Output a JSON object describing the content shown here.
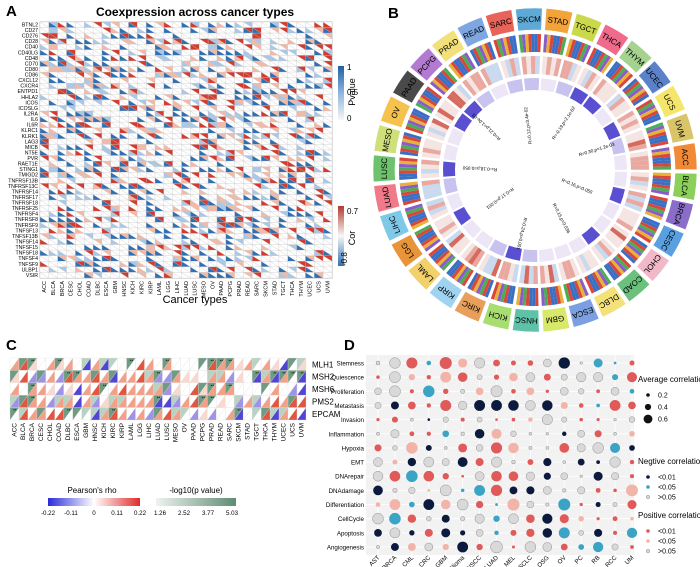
{
  "panel_labels": {
    "a": "A",
    "b": "B",
    "c": "C",
    "d": "D"
  },
  "colors": {
    "pos": "#d23b2f",
    "neg": "#2f6fb3",
    "pos_light": "#f2b9a7",
    "neg_light": "#a9c7e6",
    "grid": "#c8c8c8",
    "teal": "#2a8f9e"
  },
  "chart_data": [
    {
      "panel": "A",
      "type": "heatmap",
      "title": "Coexpression across cancer types",
      "xlabel": "Cancer types",
      "ylabel": "",
      "genes": [
        "BTNL2",
        "CD27",
        "CD276",
        "CD28",
        "CD40",
        "CD40LG",
        "CD48",
        "CD70",
        "CD80",
        "CD86",
        "CXCL12",
        "CXCR4",
        "ENTPD1",
        "HHLA2",
        "ICOS",
        "ICOSLG",
        "IL2RA",
        "IL6",
        "IL6R",
        "KLRC1",
        "KLRK1",
        "LAG3",
        "MICB",
        "NT5E",
        "PVR",
        "RAET1E",
        "STING1",
        "TMIGD2",
        "TNFRSF13B",
        "TNFRSF13C",
        "TNFRSF14",
        "TNFRSF17",
        "TNFRSF18",
        "TNFRSF25",
        "TNFRSF4",
        "TNFRSF8",
        "TNFRSF9",
        "TNFSF13",
        "TNFSF13B",
        "TNFSF14",
        "TNFSF15",
        "TNFSF18",
        "TNFSF4",
        "TNFSF9",
        "ULBP1",
        "VSIR"
      ],
      "cancers": [
        "ACC",
        "BLCA",
        "BRCA",
        "CESC",
        "CHOL",
        "COAD",
        "DLBC",
        "ESCA",
        "GBM",
        "HNSC",
        "KICH",
        "KIRC",
        "KIRP",
        "LAML",
        "LGG",
        "LIHC",
        "LUAD",
        "LUSC",
        "MESO",
        "OV",
        "PAAD",
        "PCPG",
        "PRAD",
        "READ",
        "SARC",
        "SKCM",
        "STAD",
        "TGCT",
        "THCA",
        "THYM",
        "UCEC",
        "UCS",
        "UVM"
      ],
      "legend_pvalue": {
        "title": "Pvalue",
        "ticks": [
          "1",
          "0.5",
          "0"
        ]
      },
      "legend_cor": {
        "title": "Cor",
        "ticks": [
          "0.7",
          "-0.8"
        ]
      }
    },
    {
      "panel": "B",
      "type": "circos",
      "sectors": [
        "READ",
        "SARC",
        "SKCM",
        "STAD",
        "TGCT",
        "THCA",
        "THYM",
        "UCEC",
        "UCS",
        "UVM",
        "ACC",
        "BLCA",
        "BRCA",
        "CESC",
        "CHOL",
        "COAD",
        "DLBC",
        "ESCA",
        "GBM",
        "HNSC",
        "KICH",
        "KIRC",
        "KIRP",
        "LAML",
        "LGG",
        "LIHC",
        "LUAD",
        "LUSC",
        "MESO",
        "OV",
        "PAAD",
        "PCPG",
        "PRAD"
      ],
      "sector_colors": [
        "#7ea6e0",
        "#e8645a",
        "#5fa9d6",
        "#f2a33a",
        "#c9d94b",
        "#f06a8c",
        "#a5d38f",
        "#5b82c9",
        "#f5e66b",
        "#d9c46a",
        "#f08a36",
        "#8ccf5a",
        "#8a6cc9",
        "#5aa0e0",
        "#f0b8c8",
        "#6cc07e",
        "#f3e17a",
        "#7b9fe0",
        "#d7e86a",
        "#5fc2a8",
        "#a8dd72",
        "#e89f5b",
        "#9fd3f0",
        "#f2d06b",
        "#e8943a",
        "#7fc9e8",
        "#f07a8a",
        "#6ec26e",
        "#cfe07a",
        "#f4c24d",
        "#4a4a4a",
        "#b27ad1",
        "#f2e07a"
      ],
      "annotations": [
        "R=0.16,p=0.050",
        "R=0.15,p=0.036",
        "R=0.24,p=0.001",
        "R=0.17,p=0.001",
        "R=-0.18,p=0.050",
        "R=0.21,p=1.0e-03",
        "R=0.12,p=3.4e-02",
        "R=-0.19,p=2.1e-02",
        "R=0.30,p=1.2e-03"
      ]
    },
    {
      "panel": "C",
      "type": "heatmap",
      "genes": [
        "MLH1",
        "MSH2",
        "MSH6",
        "PMS2",
        "EPCAM"
      ],
      "cancers": [
        "ACC",
        "BLCA",
        "BRCA",
        "CESC",
        "CHOL",
        "COAD",
        "DLBC",
        "ESCA",
        "GBM",
        "HNSC",
        "KICH",
        "KIRC",
        "KIRP",
        "LAML",
        "LGG",
        "LIHC",
        "LUAD",
        "LUSC",
        "MESO",
        "OV",
        "PAAD",
        "PCPG",
        "PRAD",
        "READ",
        "SARC",
        "SKCM",
        "STAD",
        "TGCT",
        "THCA",
        "THYM",
        "UCEC",
        "UCS",
        "UVM"
      ],
      "legend_rho": {
        "title": "Pearson's rho",
        "ticks": [
          "-0.22",
          "-0.11",
          "0",
          "0.11",
          "0.22"
        ]
      },
      "legend_p": {
        "title": "-log10(p value)",
        "ticks": [
          "1.26",
          "2.52",
          "3.77",
          "5.03"
        ]
      }
    },
    {
      "panel": "D",
      "type": "scatter",
      "rows": [
        "Stemness",
        "Quiescence",
        "Proliferation",
        "Metastasis",
        "Invasion",
        "Inflammation",
        "Hypoxia",
        "EMT",
        "DNArepair",
        "DNAdamage",
        "Differentiation",
        "CellCycle",
        "Apoptosis",
        "Angiogenesis"
      ],
      "columns": [
        "AST",
        "BRCA",
        "CML",
        "CRC",
        "GBM",
        "Glioma",
        "HNSCC",
        "LUAD",
        "MEL",
        "NSCLC",
        "OSG",
        "OV",
        "PC",
        "RB",
        "RCC",
        "UM"
      ],
      "legend_size": {
        "title": "Average correlations",
        "ticks": [
          "0.2",
          "0.4",
          "0.6"
        ]
      },
      "legend_neg": {
        "title": "Negtive correlation  pvalue",
        "items": [
          "<0.01",
          "<0.05",
          ">0.05"
        ]
      },
      "legend_pos": {
        "title": "Positive correlation  pvalue",
        "items": [
          "<0.01",
          "<0.05",
          ">0.05"
        ]
      }
    }
  ]
}
